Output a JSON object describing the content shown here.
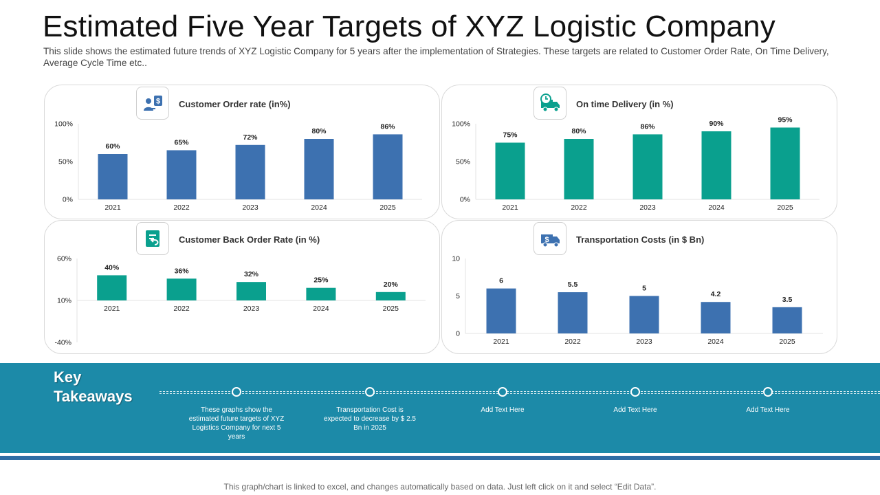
{
  "header": {
    "title": "Estimated Five Year Targets of XYZ Logistic Company",
    "subtitle": "This slide shows the estimated future trends of XYZ Logistic Company for 5 years after the implementation of Strategies. These targets are related to Customer Order Rate, On Time Delivery, Average Cycle Time etc.."
  },
  "colors": {
    "blue": "#3d71b0",
    "teal": "#0aa08e",
    "band": "#1c8aa8"
  },
  "chart_data": [
    {
      "type": "bar",
      "title": "Customer Order rate (in%)",
      "icon": "customer-money-icon",
      "categories": [
        "2021",
        "2022",
        "2023",
        "2024",
        "2025"
      ],
      "values": [
        60,
        65,
        72,
        80,
        86
      ],
      "data_labels": [
        "60%",
        "65%",
        "72%",
        "80%",
        "86%"
      ],
      "ylim": [
        0,
        100
      ],
      "yticks": [
        0,
        50,
        100
      ],
      "ytick_labels": [
        "0%",
        "50%",
        "100%"
      ],
      "color": "#3d71b0"
    },
    {
      "type": "bar",
      "title": "On time Delivery (in %)",
      "icon": "delivery-truck-clock-icon",
      "categories": [
        "2021",
        "2022",
        "2023",
        "2024",
        "2025"
      ],
      "values": [
        75,
        80,
        86,
        90,
        95
      ],
      "data_labels": [
        "75%",
        "80%",
        "86%",
        "90%",
        "95%"
      ],
      "ylim": [
        0,
        100
      ],
      "yticks": [
        0,
        50,
        100
      ],
      "ytick_labels": [
        "0%",
        "50%",
        "100%"
      ],
      "color": "#0aa08e"
    },
    {
      "type": "bar",
      "title": "Customer Back Order Rate (in %)",
      "icon": "document-return-icon",
      "categories": [
        "2021",
        "2022",
        "2023",
        "2024",
        "2025"
      ],
      "values": [
        40,
        36,
        32,
        25,
        20
      ],
      "data_labels": [
        "40%",
        "36%",
        "32%",
        "25%",
        "20%"
      ],
      "ylim": [
        -40,
        60
      ],
      "yticks": [
        -40,
        10,
        60
      ],
      "ytick_labels": [
        "-40%",
        "10%",
        "60%"
      ],
      "baseline": 10,
      "color": "#0aa08e"
    },
    {
      "type": "bar",
      "title": "Transportation Costs (in $ Bn)",
      "icon": "dollar-truck-icon",
      "categories": [
        "2021",
        "2022",
        "2023",
        "2024",
        "2025"
      ],
      "values": [
        6,
        5.5,
        5,
        4.2,
        3.5
      ],
      "data_labels": [
        "6",
        "5.5",
        "5",
        "4.2",
        "3.5"
      ],
      "ylim": [
        0,
        10
      ],
      "yticks": [
        0,
        5,
        10
      ],
      "ytick_labels": [
        "0",
        "5",
        "10"
      ],
      "color": "#3d71b0"
    }
  ],
  "key_takeaways": {
    "title": "Key Takeaways",
    "items": [
      "These graphs show the estimated future targets of XYZ Logistics Company for next 5 years",
      "Transportation Cost is expected to decrease by $ 2.5 Bn in 2025",
      "Add Text Here",
      "Add Text Here",
      "Add Text Here"
    ]
  },
  "footer": {
    "note": "This graph/chart is linked to excel, and changes automatically based on data. Just left click on it and select “Edit Data”."
  }
}
